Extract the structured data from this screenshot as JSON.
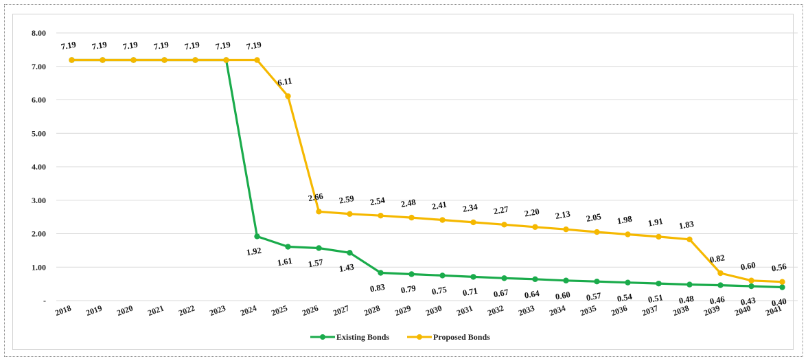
{
  "chart_data": {
    "type": "line",
    "title": "",
    "xlabel": "",
    "ylabel": "",
    "ylim": [
      0,
      8
    ],
    "y_ticks": [
      "-",
      "1.00",
      "2.00",
      "3.00",
      "4.00",
      "5.00",
      "6.00",
      "7.00",
      "8.00"
    ],
    "grid": true,
    "legend_position": "bottom",
    "categories": [
      "2018",
      "2019",
      "2020",
      "2021",
      "2022",
      "2023",
      "2024",
      "2025",
      "2026",
      "2027",
      "2028",
      "2029",
      "2030",
      "2031",
      "2032",
      "2033",
      "2034",
      "2035",
      "2036",
      "2037",
      "2038",
      "2039",
      "2040",
      "2041"
    ],
    "series": [
      {
        "name": "Existing Bonds",
        "color": "#1aab4b",
        "values": [
          7.19,
          7.19,
          7.19,
          7.19,
          7.19,
          7.19,
          1.92,
          1.61,
          1.57,
          1.43,
          0.83,
          0.79,
          0.75,
          0.71,
          0.67,
          0.64,
          0.6,
          0.57,
          0.54,
          0.51,
          0.48,
          0.46,
          0.43,
          0.4
        ],
        "labels": [
          null,
          null,
          null,
          null,
          null,
          null,
          "1.92",
          "1.61",
          "1.57",
          "1.43",
          "0.83",
          "0.79",
          "0.75",
          "0.71",
          "0.67",
          "0.64",
          "0.60",
          "0.57",
          "0.54",
          "0.51",
          "0.48",
          "0.46",
          "0.43",
          "0.40"
        ]
      },
      {
        "name": "Proposed Bonds",
        "color": "#f5b800",
        "values": [
          7.19,
          7.19,
          7.19,
          7.19,
          7.19,
          7.19,
          7.19,
          6.11,
          2.66,
          2.59,
          2.54,
          2.48,
          2.41,
          2.34,
          2.27,
          2.2,
          2.13,
          2.05,
          1.98,
          1.91,
          1.83,
          0.82,
          0.6,
          0.56
        ],
        "labels": [
          "7.19",
          "7.19",
          "7.19",
          "7.19",
          "7.19",
          "7.19",
          "7.19",
          "6.11",
          "2.66",
          "2.59",
          "2.54",
          "2.48",
          "2.41",
          "2.34",
          "2.27",
          "2.20",
          "2.13",
          "2.05",
          "1.98",
          "1.91",
          "1.83",
          "0.82",
          "0.60",
          "0.56"
        ]
      }
    ]
  }
}
